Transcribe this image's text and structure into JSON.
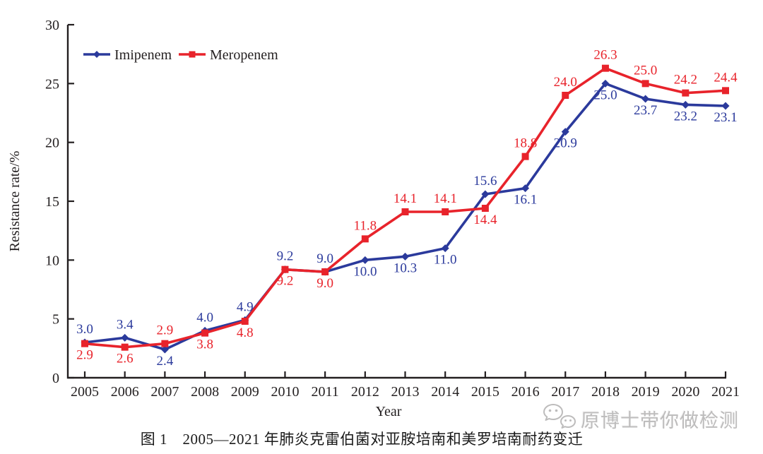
{
  "chart_data": {
    "type": "line",
    "x": [
      2005,
      2006,
      2007,
      2008,
      2009,
      2010,
      2011,
      2012,
      2013,
      2014,
      2015,
      2016,
      2017,
      2018,
      2019,
      2020,
      2021
    ],
    "xlabel": "Year",
    "ylabel": "Resistance rate/%",
    "ylim": [
      0,
      30
    ],
    "yticks": [
      0,
      5,
      10,
      15,
      20,
      25,
      30
    ],
    "grid": false,
    "legend_position": "top-left-inside",
    "axis_color": "#231f20",
    "label_format": "one-decimal",
    "series": [
      {
        "name": "Imipenem",
        "color": "#2b3a9c",
        "marker": "diamond",
        "values": [
          3.0,
          3.4,
          2.4,
          4.0,
          4.9,
          9.2,
          9.0,
          10.0,
          10.3,
          11.0,
          15.6,
          16.1,
          20.9,
          25.0,
          23.7,
          23.2,
          23.1
        ]
      },
      {
        "name": "Meropenem",
        "color": "#e8232b",
        "marker": "square",
        "values": [
          2.9,
          2.6,
          2.9,
          3.8,
          4.8,
          9.2,
          9.0,
          11.8,
          14.1,
          14.1,
          14.4,
          18.8,
          24.0,
          26.3,
          25.0,
          24.2,
          24.4
        ]
      }
    ]
  },
  "caption": "图 1　2005—2021 年肺炎克雷伯菌对亚胺培南和美罗培南耐药变迁",
  "watermark": {
    "icon": "wechat-icon",
    "text": "原博士带你做检测"
  }
}
